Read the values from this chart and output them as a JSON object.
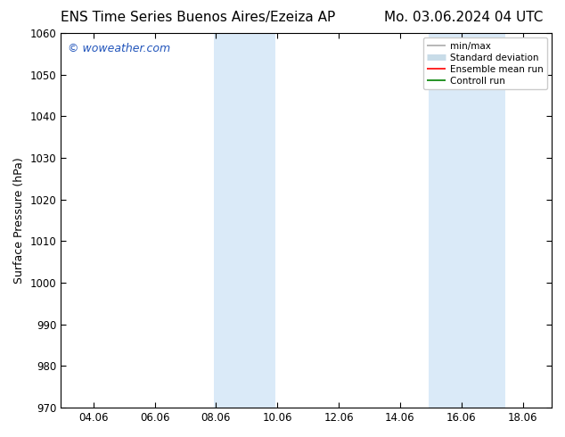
{
  "title_left": "ENS Time Series Buenos Aires/Ezeiza AP",
  "title_right": "Mo. 03.06.2024 04 UTC",
  "ylabel": "Surface Pressure (hPa)",
  "xlim": [
    3.0,
    19.0
  ],
  "ylim": [
    970,
    1060
  ],
  "xticks": [
    4.06,
    6.06,
    8.06,
    10.06,
    12.06,
    14.06,
    16.06,
    18.06
  ],
  "xtick_labels": [
    "04.06",
    "06.06",
    "08.06",
    "10.06",
    "12.06",
    "14.06",
    "16.06",
    "18.06"
  ],
  "yticks": [
    970,
    980,
    990,
    1000,
    1010,
    1020,
    1030,
    1040,
    1050,
    1060
  ],
  "shaded_regions": [
    {
      "xmin": 8.0,
      "xmax": 10.0
    },
    {
      "xmin": 15.0,
      "xmax": 17.5
    }
  ],
  "shade_color": "#daeaf8",
  "watermark": "© woweather.com",
  "watermark_color": "#2255bb",
  "legend_items": [
    {
      "label": "min/max",
      "color": "#aaaaaa",
      "lw": 1.2
    },
    {
      "label": "Standard deviation",
      "color": "#c8dce8",
      "lw": 5
    },
    {
      "label": "Ensemble mean run",
      "color": "red",
      "lw": 1.2
    },
    {
      "label": "Controll run",
      "color": "green",
      "lw": 1.2
    }
  ],
  "bg_color": "#ffffff",
  "title_fontsize": 11,
  "ylabel_fontsize": 9,
  "tick_fontsize": 8.5,
  "watermark_fontsize": 9,
  "legend_fontsize": 7.5
}
